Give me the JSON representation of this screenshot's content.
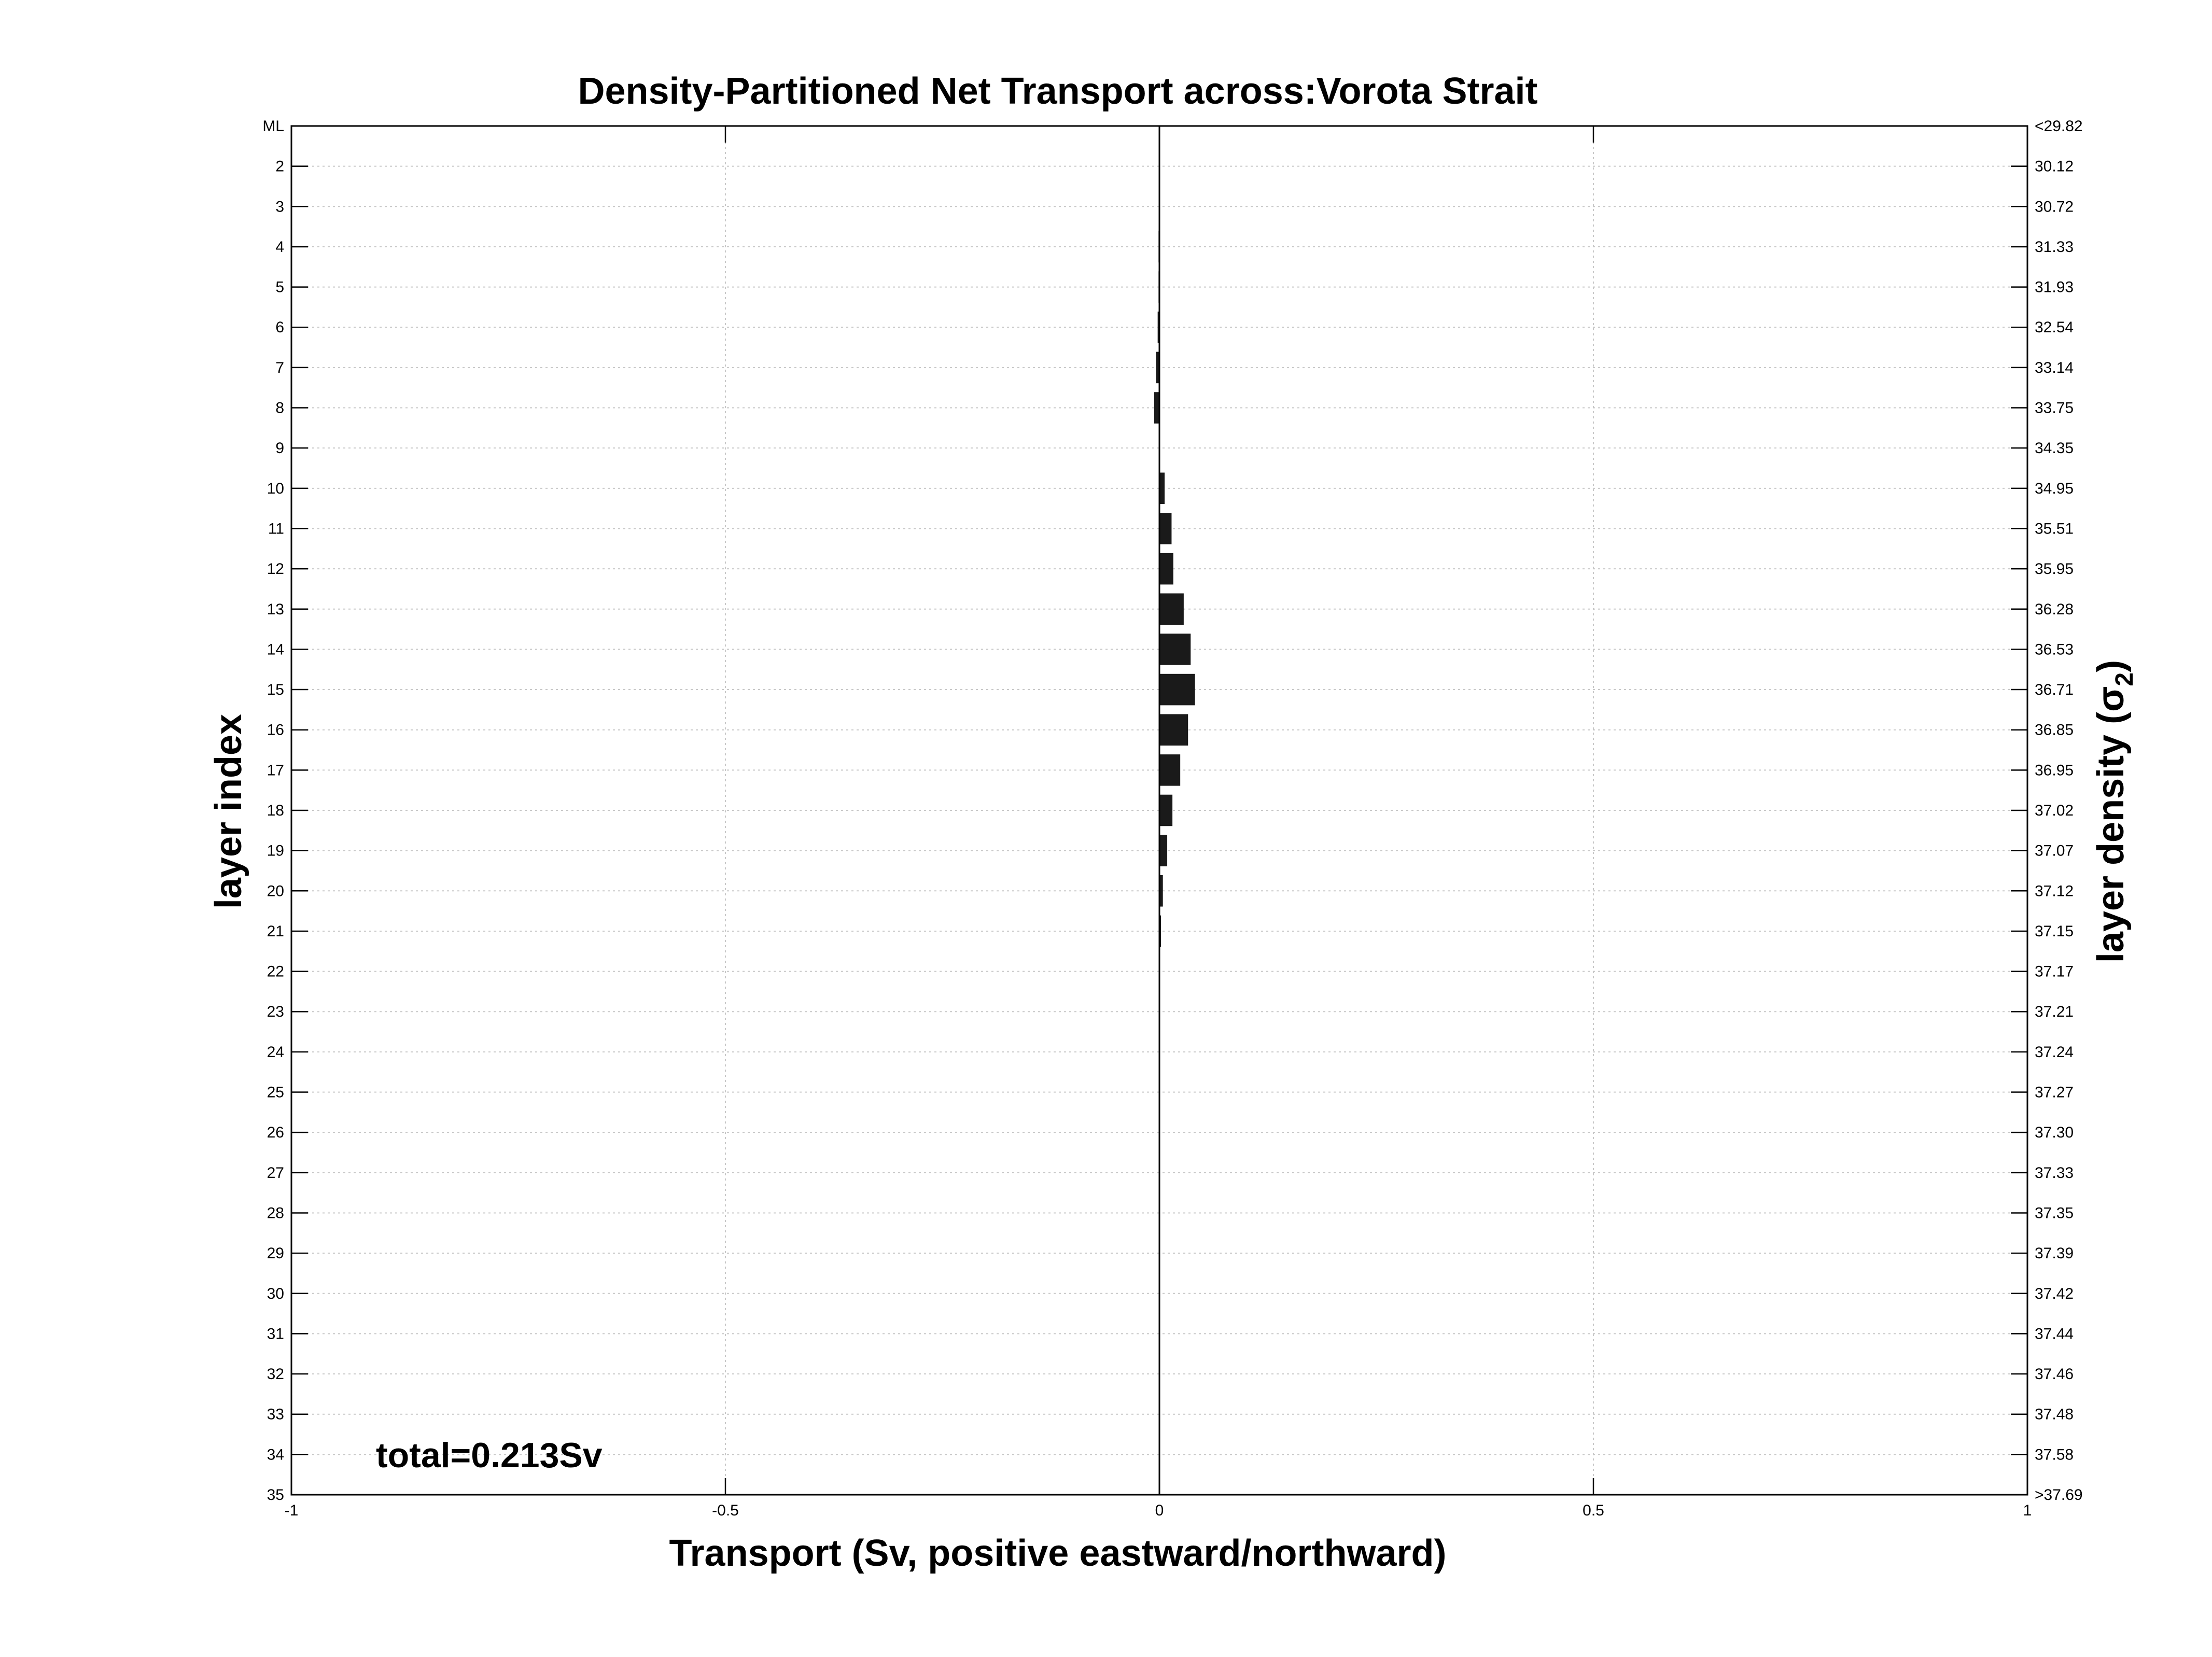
{
  "chart_data": {
    "type": "bar",
    "orientation": "horizontal",
    "title": "Density-Partitioned Net Transport across:Vorota Strait",
    "xlabel": "Transport (Sv, positive eastward/northward)",
    "ylabel_left": "layer index",
    "ylabel_right": "layer density (",
    "ylabel_right_symbol": "σ",
    "ylabel_right_subscript": "2",
    "ylabel_right_close": ")",
    "xlim": [
      -1,
      1
    ],
    "x_ticks": [
      "-1",
      "-0.5",
      "0",
      "0.5",
      "1"
    ],
    "x_tick_values": [
      -1,
      -0.5,
      0,
      0.5,
      1
    ],
    "grid": true,
    "annotation": "total=0.213Sv",
    "bar_color": "#1a1a1a",
    "layer_labels": [
      "ML",
      "2",
      "3",
      "4",
      "5",
      "6",
      "7",
      "8",
      "9",
      "10",
      "11",
      "12",
      "13",
      "14",
      "15",
      "16",
      "17",
      "18",
      "19",
      "20",
      "21",
      "22",
      "23",
      "24",
      "25",
      "26",
      "27",
      "28",
      "29",
      "30",
      "31",
      "32",
      "33",
      "34",
      "35"
    ],
    "density_labels": [
      "<29.82",
      "30.12",
      "30.72",
      "31.33",
      "31.93",
      "32.54",
      "33.14",
      "33.75",
      "34.35",
      "34.95",
      "35.51",
      "35.95",
      "36.28",
      "36.53",
      "36.71",
      "36.85",
      "36.95",
      "37.02",
      "37.07",
      "37.12",
      "37.15",
      "37.17",
      "37.21",
      "37.24",
      "37.27",
      "37.30",
      "37.33",
      "37.35",
      "37.39",
      "37.42",
      "37.44",
      "37.46",
      "37.48",
      "37.58",
      ">37.69"
    ],
    "values": [
      0.0,
      0.0,
      0.0,
      -0.001,
      -0.001,
      -0.002,
      -0.004,
      -0.006,
      0.0,
      0.006,
      0.014,
      0.016,
      0.028,
      0.036,
      0.041,
      0.033,
      0.024,
      0.015,
      0.009,
      0.004,
      0.001,
      0.0,
      0.0,
      0.0,
      0.0,
      0.0,
      0.0,
      0.0,
      0.0,
      0.0,
      0.0,
      0.0,
      0.0,
      0.0,
      0.0
    ]
  }
}
